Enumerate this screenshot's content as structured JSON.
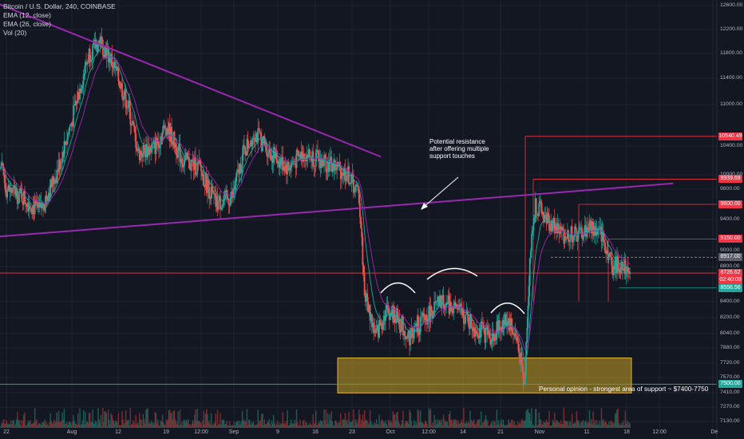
{
  "legend": {
    "title": "Bitcoin / U.S. Dollar, 240, COINBASE",
    "ema1": "EMA (12, close)",
    "ema2": "EMA (26, close)",
    "vol": "Vol (20)"
  },
  "annotations": {
    "resistance_line1": "Potential resistance",
    "resistance_line2": "after offering multiple",
    "resistance_line3": "support touches",
    "support_note": "Personal opinion - strongest area of support ~ $7400-7750"
  },
  "price_tags": [
    {
      "label": "10540.49",
      "value": 10540.49,
      "color": "#f23645"
    },
    {
      "label": "9939.69",
      "value": 9939.69,
      "color": "#f23645"
    },
    {
      "label": "9600.00",
      "value": 9600.0,
      "color": "#f23645"
    },
    {
      "label": "9150.00",
      "value": 9150.0,
      "color": "#f23645"
    },
    {
      "label": "8917.00",
      "value": 8917.0,
      "color": "#5d606b"
    },
    {
      "label": "8726.62",
      "value": 8726.62,
      "color": "#f23645"
    },
    {
      "label": "02:40:09",
      "value": 8642.0,
      "color": "#f23645"
    },
    {
      "label": "8556.56",
      "value": 8556.56,
      "color": "#26a69a"
    },
    {
      "label": "7500.00",
      "value": 7500.0,
      "color": "#26a69a"
    }
  ],
  "chart_data": {
    "type": "candlestick",
    "title": "Bitcoin / U.S. Dollar, 240, COINBASE",
    "y_ticks": [
      "12600.00",
      "12200.00",
      "11800.00",
      "11400.00",
      "11000.00",
      "10400.00",
      "10000.00",
      "9800.00",
      "9400.00",
      "9000.00",
      "8800.00",
      "8400.00",
      "8200.00",
      "8040.00",
      "7880.00",
      "7720.00",
      "7570.00",
      "7410.00",
      "7270.00",
      "7130.00"
    ],
    "x_ticks": [
      "22",
      "Aug",
      "12",
      "19",
      "12:00",
      "Sep",
      "9",
      "16",
      "23",
      "Oct",
      "12:00",
      "14",
      "21",
      "Nov",
      "11",
      "18",
      "12:00",
      "De"
    ],
    "ylim": [
      7130,
      12600
    ],
    "series": [
      {
        "name": "EMA (12, close)",
        "color": "#26a69a"
      },
      {
        "name": "EMA (26, close)",
        "color": "#7b1fa2"
      },
      {
        "name": "Vol (20)"
      }
    ],
    "close_path": [
      [
        "Jul 20",
        10400
      ],
      [
        "Jul 22",
        9800
      ],
      [
        "Jul 25",
        9700
      ],
      [
        "Jul 28",
        9500
      ],
      [
        "Jul 31",
        10000
      ],
      [
        "Aug 3",
        10800
      ],
      [
        "Aug 6",
        11800
      ],
      [
        "Aug 8",
        12000
      ],
      [
        "Aug 10",
        11700
      ],
      [
        "Aug 13",
        11000
      ],
      [
        "Aug 15",
        10300
      ],
      [
        "Aug 18",
        10400
      ],
      [
        "Aug 20",
        10700
      ],
      [
        "Aug 23",
        10200
      ],
      [
        "Aug 26",
        10100
      ],
      [
        "Aug 29",
        9600
      ],
      [
        "Sep 1",
        9700
      ],
      [
        "Sep 3",
        10300
      ],
      [
        "Sep 5",
        10600
      ],
      [
        "Sep 8",
        10300
      ],
      [
        "Sep 11",
        10100
      ],
      [
        "Sep 14",
        10300
      ],
      [
        "Sep 17",
        10200
      ],
      [
        "Sep 20",
        10100
      ],
      [
        "Sep 22",
        10000
      ],
      [
        "Sep 24",
        9700
      ],
      [
        "Sep 25",
        8500
      ],
      [
        "Sep 27",
        8000
      ],
      [
        "Sep 29",
        8300
      ],
      [
        "Oct 1",
        8200
      ],
      [
        "Oct 3",
        8000
      ],
      [
        "Oct 6",
        8200
      ],
      [
        "Oct 9",
        8400
      ],
      [
        "Oct 12",
        8300
      ],
      [
        "Oct 15",
        8100
      ],
      [
        "Oct 18",
        8000
      ],
      [
        "Oct 21",
        8200
      ],
      [
        "Oct 23",
        7900
      ],
      [
        "Oct 24",
        7450
      ],
      [
        "Oct 25",
        8900
      ],
      [
        "Oct 26",
        9600
      ],
      [
        "Oct 28",
        9400
      ],
      [
        "Oct 31",
        9200
      ],
      [
        "Nov 3",
        9200
      ],
      [
        "Nov 5",
        9300
      ],
      [
        "Nov 7",
        9200
      ],
      [
        "Nov 9",
        8800
      ],
      [
        "Nov 11",
        8850
      ],
      [
        "Nov 13",
        8726
      ]
    ],
    "trendlines": [
      {
        "name": "descending resistance",
        "from": [
          "Jul 20",
          12650
        ],
        "to": [
          "Sep 28",
          10250
        ]
      },
      {
        "name": "ascending trendline",
        "from": [
          "Jul 17",
          9160
        ],
        "to": [
          "Nov 20",
          9880
        ]
      }
    ],
    "support_zone": {
      "low": 7400,
      "high": 7750,
      "from": "Sep 26",
      "to": "Nov 14"
    },
    "horizontal_levels": [
      10540.49,
      9939.69,
      9600.0,
      9150.0,
      8917.0,
      8726.62,
      8556.56,
      7500.0
    ],
    "grid": true,
    "legend_position": "top-left"
  }
}
